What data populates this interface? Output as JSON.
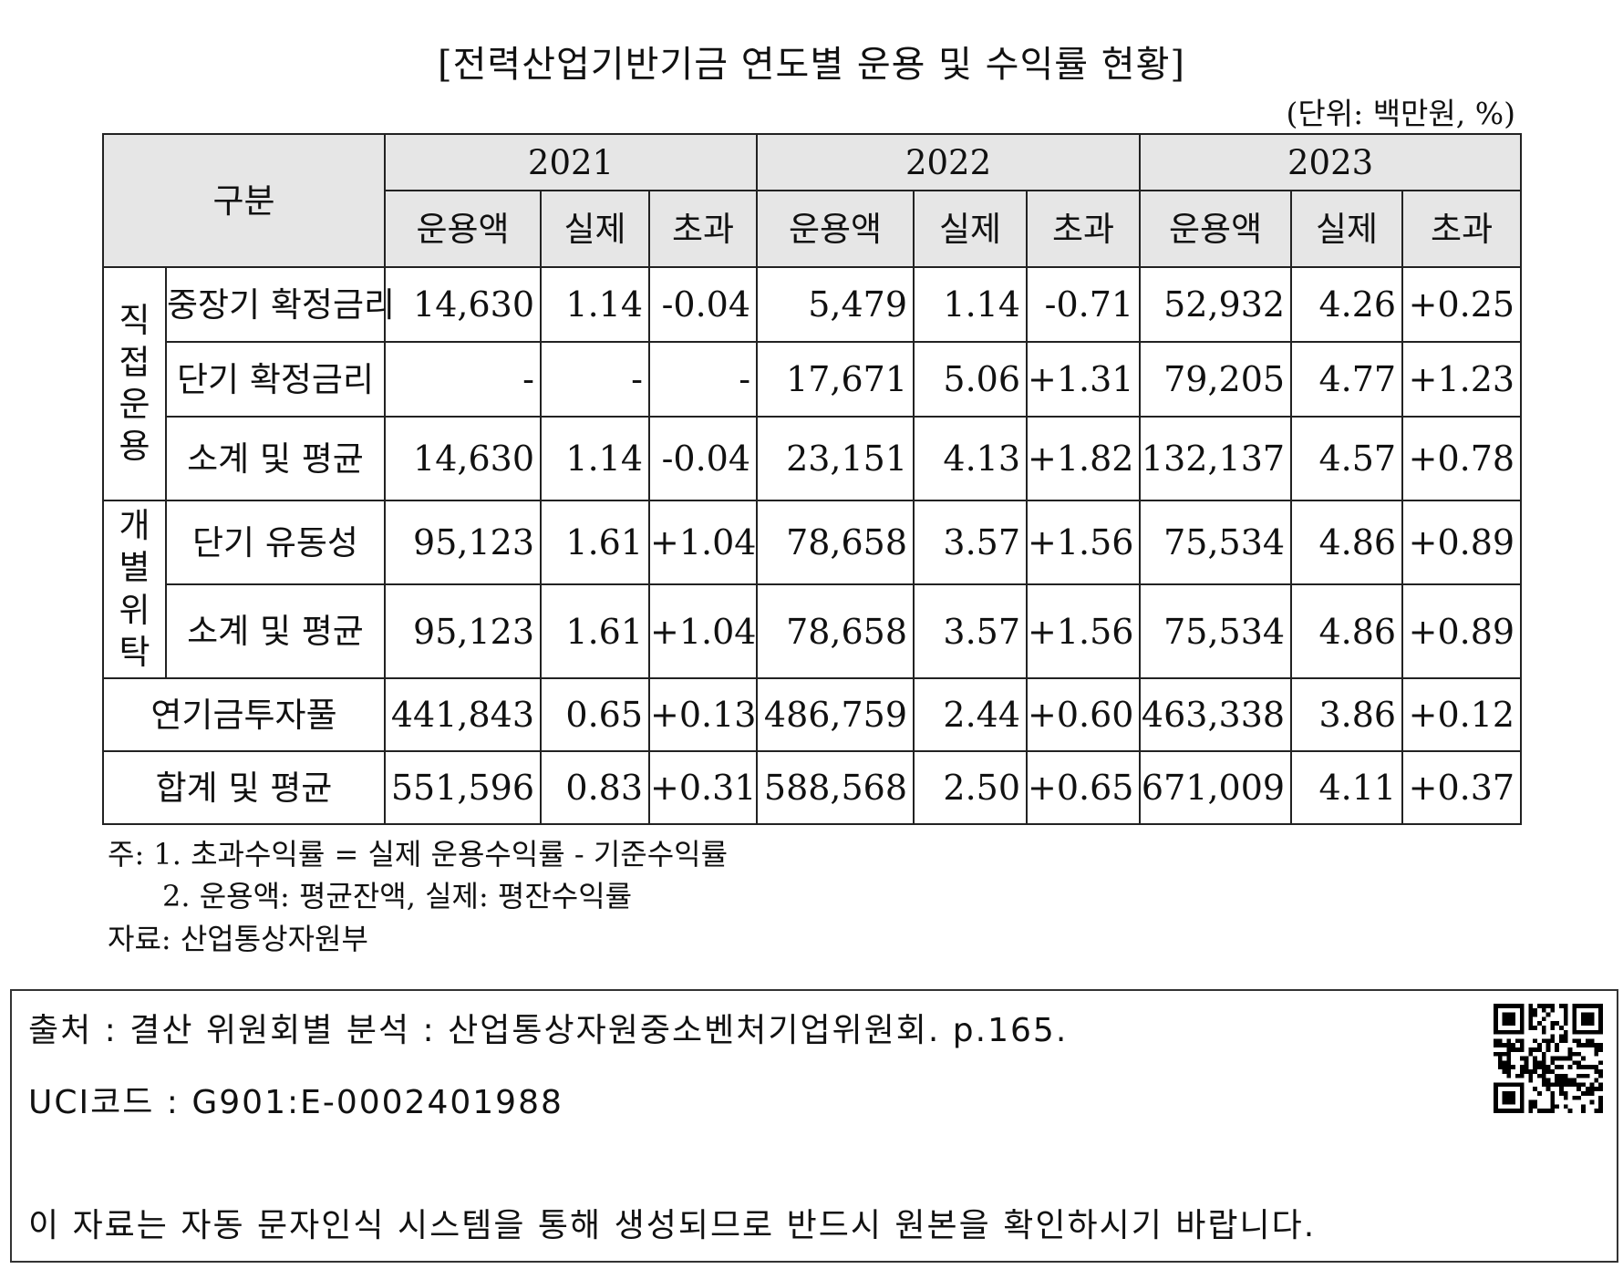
{
  "title": "[전력산업기반기금 연도별 운용 및 수익률 현황]",
  "unit": "(단위: 백만원, %)",
  "table": {
    "corner": "구분",
    "years": [
      "2021",
      "2022",
      "2023"
    ],
    "subheaders": [
      "운용액",
      "실제",
      "초과"
    ],
    "groups": {
      "direct": "직\n접\n운\n용",
      "trust": "개\n별\n위\n탁"
    },
    "rows": [
      {
        "label": "중장기 확정금리",
        "cells": [
          "14,630",
          "1.14",
          "-0.04",
          "5,479",
          "1.14",
          "-0.71",
          "52,932",
          "4.26",
          "+0.25"
        ]
      },
      {
        "label": "단기 확정금리",
        "cells": [
          "-",
          "-",
          "-",
          "17,671",
          "5.06",
          "+1.31",
          "79,205",
          "4.77",
          "+1.23"
        ]
      },
      {
        "label": "소계 및 평균",
        "cells": [
          "14,630",
          "1.14",
          "-0.04",
          "23,151",
          "4.13",
          "+1.82",
          "132,137",
          "4.57",
          "+0.78"
        ]
      },
      {
        "label": "단기 유동성",
        "cells": [
          "95,123",
          "1.61",
          "+1.04",
          "78,658",
          "3.57",
          "+1.56",
          "75,534",
          "4.86",
          "+0.89"
        ]
      },
      {
        "label": "소계 및 평균",
        "cells": [
          "95,123",
          "1.61",
          "+1.04",
          "78,658",
          "3.57",
          "+1.56",
          "75,534",
          "4.86",
          "+0.89"
        ]
      },
      {
        "label": "연기금투자풀",
        "cells": [
          "441,843",
          "0.65",
          "+0.13",
          "486,759",
          "2.44",
          "+0.60",
          "463,338",
          "3.86",
          "+0.12"
        ]
      },
      {
        "label": "합계 및 평균",
        "cells": [
          "551,596",
          "0.83",
          "+0.31",
          "588,568",
          "2.50",
          "+0.65",
          "671,009",
          "4.11",
          "+0.37"
        ]
      }
    ]
  },
  "notes": {
    "note1": "주: 1. 초과수익률 = 실제 운용수익률 - 기준수익률",
    "note2": "2. 운용액: 평균잔액, 실제: 평잔수익률",
    "source": "자료: 산업통상자원부"
  },
  "footer": {
    "source_line": "출처 : 결산 위원회별 분석 : 산업통상자원중소벤처기업위원회. p.165.",
    "uci_line": "UCI코드 : G901:E-0002401988",
    "disclaimer": "이 자료는 자동 문자인식 시스템을 통해 생성되므로 반드시 원본을 확인하시기 바랍니다."
  }
}
